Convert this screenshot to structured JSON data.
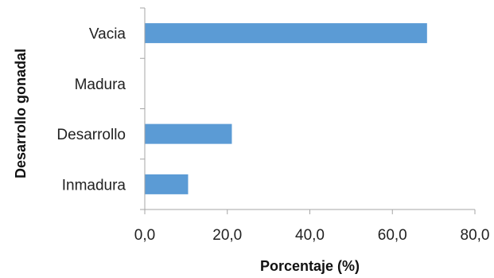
{
  "chart_data": {
    "type": "bar",
    "orientation": "horizontal",
    "title": "",
    "xlabel": "Porcentaje (%)",
    "ylabel": "Desarrollo gonadal",
    "categories": [
      "Vacia",
      "Madura",
      "Desarrollo",
      "Inmadura"
    ],
    "values": [
      68.4,
      0.0,
      21.1,
      10.5
    ],
    "xlim": [
      0,
      80
    ],
    "xticks": [
      "0,0",
      "20,0",
      "40,0",
      "60,0",
      "80,0"
    ],
    "grid": false,
    "legend": "none",
    "bar_color": "#5B9BD5",
    "axis_color": "#A6A6A6"
  }
}
